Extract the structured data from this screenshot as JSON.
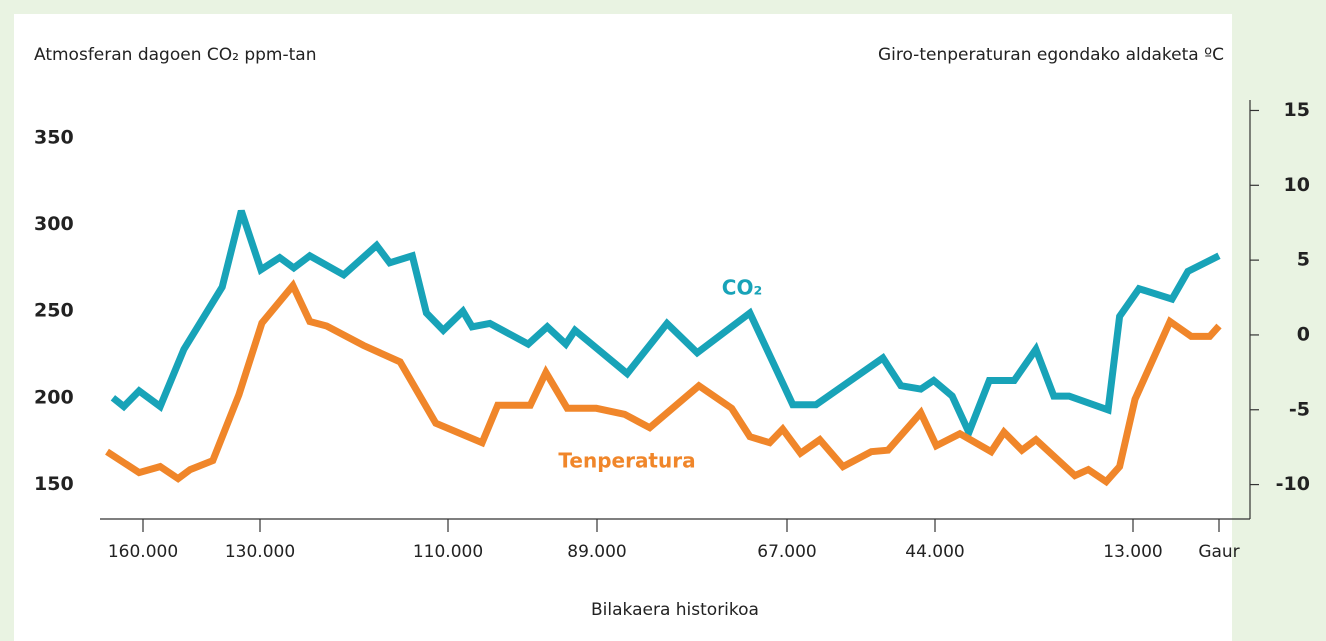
{
  "chart_data": {
    "type": "line",
    "y_label": "Atmosferan dagoen CO₂ ppm-tan",
    "y2_label": "Giro-tenperaturan egondako aldaketa ºC",
    "x_label": "Bilakaera historikoa",
    "xlim": [
      171000,
      -4700
    ],
    "xticks": [
      {
        "value": 160000,
        "label": "160.000"
      },
      {
        "value": 130000,
        "label": "130.000"
      },
      {
        "value": 110000,
        "label": "110.000"
      },
      {
        "value": 89000,
        "label": "89.000"
      },
      {
        "value": 67000,
        "label": "67.000"
      },
      {
        "value": 44000,
        "label": "44.000"
      },
      {
        "value": 13000,
        "label": "13.000"
      },
      {
        "value": 0,
        "label": "Gaur"
      }
    ],
    "ylim": [
      130,
      372
    ],
    "yticks": [
      150,
      200,
      250,
      300,
      350
    ],
    "y2lim": [
      -12.3,
      15.7
    ],
    "y2ticks": [
      -10,
      -5,
      0,
      5,
      10,
      15
    ],
    "series": [
      {
        "name": "CO₂",
        "color": "#18a3b8",
        "x": [
          167700,
          164900,
          161000,
          155600,
          149500,
          139700,
          134800,
          129900,
          127900,
          126400,
          124700,
          121100,
          117600,
          116200,
          113800,
          112300,
          110500,
          107900,
          106600,
          104100,
          98700,
          96000,
          93400,
          92100,
          85500,
          80900,
          77400,
          71300,
          66100,
          62500,
          52100,
          49300,
          46200,
          44200,
          41300,
          38700,
          35500,
          31600,
          28200,
          25400,
          23000,
          16900,
          15100,
          12100,
          7100,
          4700,
          0
        ],
        "values": [
          200,
          195,
          204,
          195,
          228,
          264,
          308,
          274,
          281,
          275,
          282,
          271,
          288,
          278,
          282,
          249,
          239,
          250,
          241,
          243,
          231,
          241,
          231,
          239,
          214,
          243,
          226,
          249,
          196,
          196,
          223,
          207,
          205,
          210,
          201,
          180,
          210,
          210,
          228,
          201,
          201,
          193,
          247,
          263,
          257,
          273,
          282
        ]
      },
      {
        "name": "Tenperatura",
        "color": "#f0862a",
        "axis": "y2",
        "x": [
          169200,
          161000,
          155600,
          151000,
          147900,
          142100,
          135400,
          129800,
          126500,
          124700,
          122900,
          119000,
          115100,
          111300,
          105200,
          103000,
          98400,
          96200,
          93200,
          89100,
          85800,
          82900,
          77200,
          73400,
          71300,
          69000,
          67500,
          64900,
          61900,
          58300,
          53900,
          51300,
          46200,
          43800,
          40100,
          35200,
          33200,
          30400,
          28200,
          22100,
          20000,
          17200,
          15100,
          12700,
          7400,
          4200,
          1400,
          0
        ],
        "values": [
          -7.8,
          -9.2,
          -8.8,
          -9.6,
          -9.0,
          -8.4,
          -4.0,
          0.8,
          3.3,
          0.9,
          0.6,
          -0.7,
          -1.8,
          -5.9,
          -7.2,
          -4.7,
          -4.7,
          -2.5,
          -4.9,
          -4.9,
          -5.3,
          -6.2,
          -3.4,
          -4.9,
          -6.8,
          -7.2,
          -6.3,
          -7.9,
          -7.0,
          -8.8,
          -7.8,
          -7.7,
          -5.2,
          -7.4,
          -6.6,
          -7.8,
          -6.5,
          -7.7,
          -7.0,
          -9.4,
          -9.0,
          -9.8,
          -8.8,
          -4.3,
          0.9,
          -0.1,
          -0.1,
          0.6
        ]
      }
    ]
  }
}
